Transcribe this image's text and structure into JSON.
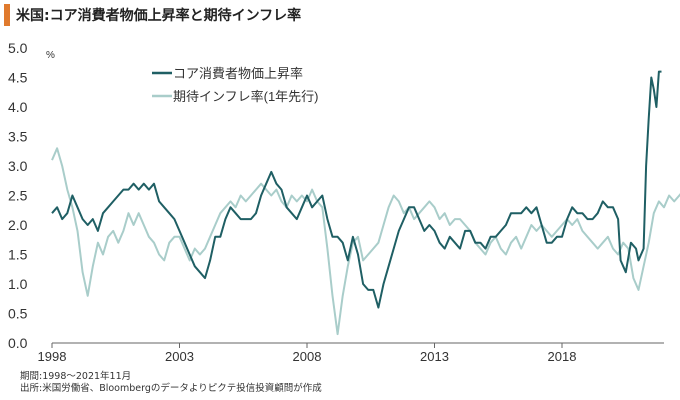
{
  "title": "米国:コア消費者物価上昇率と期待インフレ率",
  "colors": {
    "accent": "#e07a2e",
    "core_cpi": "#1f5f64",
    "expected_inflation": "#a9cdca",
    "axis": "#666666"
  },
  "notes": {
    "period": "期間:1998～2021年11月",
    "source": "出所:米国労働省、Bloombergのデータよりピクテ投信投資顧問が作成"
  },
  "chart_data": {
    "type": "line",
    "ylabel": "%",
    "ylim": [
      0.0,
      5.0
    ],
    "yticks": [
      "0.0",
      "0.5",
      "1.0",
      "1.5",
      "2.0",
      "2.5",
      "3.0",
      "3.5",
      "4.0",
      "4.5",
      "5.0"
    ],
    "xlim": [
      1998.0,
      2022.0
    ],
    "xticks": [
      {
        "x": 1998,
        "label": "1998"
      },
      {
        "x": 2003,
        "label": "2003"
      },
      {
        "x": 2008,
        "label": "2008"
      },
      {
        "x": 2013,
        "label": "2013"
      },
      {
        "x": 2018,
        "label": "2018"
      }
    ],
    "legend": "top-left",
    "series": [
      {
        "name": "コア消費者物価上昇率",
        "color": "#1f5f64",
        "points": [
          [
            1998.0,
            2.2
          ],
          [
            1998.2,
            2.3
          ],
          [
            1998.4,
            2.1
          ],
          [
            1998.6,
            2.2
          ],
          [
            1998.8,
            2.5
          ],
          [
            1999.0,
            2.3
          ],
          [
            1999.2,
            2.1
          ],
          [
            1999.4,
            2.0
          ],
          [
            1999.6,
            2.1
          ],
          [
            1999.8,
            1.9
          ],
          [
            2000.0,
            2.2
          ],
          [
            2000.2,
            2.3
          ],
          [
            2000.4,
            2.4
          ],
          [
            2000.6,
            2.5
          ],
          [
            2000.8,
            2.6
          ],
          [
            2001.0,
            2.6
          ],
          [
            2001.2,
            2.7
          ],
          [
            2001.4,
            2.6
          ],
          [
            2001.6,
            2.7
          ],
          [
            2001.8,
            2.6
          ],
          [
            2002.0,
            2.7
          ],
          [
            2002.2,
            2.4
          ],
          [
            2002.4,
            2.3
          ],
          [
            2002.6,
            2.2
          ],
          [
            2002.8,
            2.1
          ],
          [
            2003.0,
            1.9
          ],
          [
            2003.2,
            1.7
          ],
          [
            2003.4,
            1.5
          ],
          [
            2003.6,
            1.3
          ],
          [
            2003.8,
            1.2
          ],
          [
            2004.0,
            1.1
          ],
          [
            2004.2,
            1.4
          ],
          [
            2004.4,
            1.8
          ],
          [
            2004.6,
            1.8
          ],
          [
            2004.8,
            2.1
          ],
          [
            2005.0,
            2.3
          ],
          [
            2005.2,
            2.2
          ],
          [
            2005.4,
            2.1
          ],
          [
            2005.6,
            2.1
          ],
          [
            2005.8,
            2.1
          ],
          [
            2006.0,
            2.2
          ],
          [
            2006.2,
            2.5
          ],
          [
            2006.4,
            2.7
          ],
          [
            2006.6,
            2.9
          ],
          [
            2006.8,
            2.7
          ],
          [
            2007.0,
            2.6
          ],
          [
            2007.2,
            2.3
          ],
          [
            2007.4,
            2.2
          ],
          [
            2007.6,
            2.1
          ],
          [
            2007.8,
            2.3
          ],
          [
            2008.0,
            2.5
          ],
          [
            2008.2,
            2.3
          ],
          [
            2008.4,
            2.4
          ],
          [
            2008.6,
            2.5
          ],
          [
            2008.8,
            2.1
          ],
          [
            2009.0,
            1.8
          ],
          [
            2009.2,
            1.8
          ],
          [
            2009.4,
            1.7
          ],
          [
            2009.6,
            1.4
          ],
          [
            2009.8,
            1.8
          ],
          [
            2010.0,
            1.5
          ],
          [
            2010.2,
            1.0
          ],
          [
            2010.4,
            0.9
          ],
          [
            2010.6,
            0.9
          ],
          [
            2010.8,
            0.6
          ],
          [
            2011.0,
            1.0
          ],
          [
            2011.2,
            1.3
          ],
          [
            2011.4,
            1.6
          ],
          [
            2011.6,
            1.9
          ],
          [
            2011.8,
            2.1
          ],
          [
            2012.0,
            2.3
          ],
          [
            2012.2,
            2.3
          ],
          [
            2012.4,
            2.1
          ],
          [
            2012.6,
            1.9
          ],
          [
            2012.8,
            2.0
          ],
          [
            2013.0,
            1.9
          ],
          [
            2013.2,
            1.7
          ],
          [
            2013.4,
            1.6
          ],
          [
            2013.6,
            1.8
          ],
          [
            2013.8,
            1.7
          ],
          [
            2014.0,
            1.6
          ],
          [
            2014.2,
            1.9
          ],
          [
            2014.4,
            1.9
          ],
          [
            2014.6,
            1.7
          ],
          [
            2014.8,
            1.7
          ],
          [
            2015.0,
            1.6
          ],
          [
            2015.2,
            1.8
          ],
          [
            2015.4,
            1.8
          ],
          [
            2015.6,
            1.9
          ],
          [
            2015.8,
            2.0
          ],
          [
            2016.0,
            2.2
          ],
          [
            2016.2,
            2.2
          ],
          [
            2016.4,
            2.2
          ],
          [
            2016.6,
            2.3
          ],
          [
            2016.8,
            2.2
          ],
          [
            2017.0,
            2.3
          ],
          [
            2017.2,
            2.0
          ],
          [
            2017.4,
            1.7
          ],
          [
            2017.6,
            1.7
          ],
          [
            2017.8,
            1.8
          ],
          [
            2018.0,
            1.8
          ],
          [
            2018.2,
            2.1
          ],
          [
            2018.4,
            2.3
          ],
          [
            2018.6,
            2.2
          ],
          [
            2018.8,
            2.2
          ],
          [
            2019.0,
            2.1
          ],
          [
            2019.2,
            2.1
          ],
          [
            2019.4,
            2.2
          ],
          [
            2019.6,
            2.4
          ],
          [
            2019.8,
            2.3
          ],
          [
            2020.0,
            2.3
          ],
          [
            2020.2,
            2.1
          ],
          [
            2020.3,
            1.4
          ],
          [
            2020.5,
            1.2
          ],
          [
            2020.7,
            1.7
          ],
          [
            2020.9,
            1.6
          ],
          [
            2021.0,
            1.4
          ],
          [
            2021.2,
            1.6
          ],
          [
            2021.3,
            3.0
          ],
          [
            2021.4,
            3.8
          ],
          [
            2021.5,
            4.5
          ],
          [
            2021.6,
            4.3
          ],
          [
            2021.7,
            4.0
          ],
          [
            2021.8,
            4.6
          ],
          [
            2021.9,
            4.6
          ]
        ]
      },
      {
        "name": "期待インフレ率(1年先行)",
        "color": "#a9cdca",
        "points": [
          [
            1998.0,
            3.1
          ],
          [
            1998.2,
            3.3
          ],
          [
            1998.4,
            3.0
          ],
          [
            1998.6,
            2.6
          ],
          [
            1998.8,
            2.3
          ],
          [
            1999.0,
            1.9
          ],
          [
            1999.2,
            1.2
          ],
          [
            1999.4,
            0.8
          ],
          [
            1999.6,
            1.3
          ],
          [
            1999.8,
            1.7
          ],
          [
            2000.0,
            1.5
          ],
          [
            2000.2,
            1.8
          ],
          [
            2000.4,
            1.9
          ],
          [
            2000.6,
            1.7
          ],
          [
            2000.8,
            1.9
          ],
          [
            2001.0,
            2.2
          ],
          [
            2001.2,
            2.0
          ],
          [
            2001.4,
            2.2
          ],
          [
            2001.6,
            2.0
          ],
          [
            2001.8,
            1.8
          ],
          [
            2002.0,
            1.7
          ],
          [
            2002.2,
            1.5
          ],
          [
            2002.4,
            1.4
          ],
          [
            2002.6,
            1.7
          ],
          [
            2002.8,
            1.8
          ],
          [
            2003.0,
            1.8
          ],
          [
            2003.2,
            1.6
          ],
          [
            2003.4,
            1.4
          ],
          [
            2003.6,
            1.6
          ],
          [
            2003.8,
            1.5
          ],
          [
            2004.0,
            1.6
          ],
          [
            2004.2,
            1.8
          ],
          [
            2004.4,
            2.0
          ],
          [
            2004.6,
            2.2
          ],
          [
            2004.8,
            2.3
          ],
          [
            2005.0,
            2.4
          ],
          [
            2005.2,
            2.3
          ],
          [
            2005.4,
            2.5
          ],
          [
            2005.6,
            2.4
          ],
          [
            2005.8,
            2.5
          ],
          [
            2006.0,
            2.6
          ],
          [
            2006.2,
            2.7
          ],
          [
            2006.4,
            2.6
          ],
          [
            2006.6,
            2.5
          ],
          [
            2006.8,
            2.6
          ],
          [
            2007.0,
            2.4
          ],
          [
            2007.2,
            2.3
          ],
          [
            2007.4,
            2.5
          ],
          [
            2007.6,
            2.4
          ],
          [
            2007.8,
            2.5
          ],
          [
            2008.0,
            2.4
          ],
          [
            2008.2,
            2.6
          ],
          [
            2008.4,
            2.4
          ],
          [
            2008.6,
            2.3
          ],
          [
            2008.8,
            1.6
          ],
          [
            2009.0,
            0.8
          ],
          [
            2009.2,
            0.15
          ],
          [
            2009.4,
            0.8
          ],
          [
            2009.6,
            1.3
          ],
          [
            2009.8,
            1.7
          ],
          [
            2010.0,
            1.8
          ],
          [
            2010.2,
            1.4
          ],
          [
            2010.4,
            1.5
          ],
          [
            2010.6,
            1.6
          ],
          [
            2010.8,
            1.7
          ],
          [
            2011.0,
            2.0
          ],
          [
            2011.2,
            2.3
          ],
          [
            2011.4,
            2.5
          ],
          [
            2011.6,
            2.4
          ],
          [
            2011.8,
            2.2
          ],
          [
            2012.0,
            2.3
          ],
          [
            2012.2,
            2.1
          ],
          [
            2012.4,
            2.2
          ],
          [
            2012.6,
            2.3
          ],
          [
            2012.8,
            2.4
          ],
          [
            2013.0,
            2.3
          ],
          [
            2013.2,
            2.1
          ],
          [
            2013.4,
            2.2
          ],
          [
            2013.6,
            2.0
          ],
          [
            2013.8,
            2.1
          ],
          [
            2014.0,
            2.1
          ],
          [
            2014.2,
            2.0
          ],
          [
            2014.4,
            1.9
          ],
          [
            2014.6,
            1.7
          ],
          [
            2014.8,
            1.6
          ],
          [
            2015.0,
            1.5
          ],
          [
            2015.2,
            1.7
          ],
          [
            2015.4,
            1.8
          ],
          [
            2015.6,
            1.6
          ],
          [
            2015.8,
            1.5
          ],
          [
            2016.0,
            1.7
          ],
          [
            2016.2,
            1.8
          ],
          [
            2016.4,
            1.6
          ],
          [
            2016.6,
            1.8
          ],
          [
            2016.8,
            2.0
          ],
          [
            2017.0,
            1.9
          ],
          [
            2017.2,
            2.0
          ],
          [
            2017.4,
            1.9
          ],
          [
            2017.6,
            1.8
          ],
          [
            2017.8,
            1.9
          ],
          [
            2018.0,
            2.0
          ],
          [
            2018.2,
            2.1
          ],
          [
            2018.4,
            2.0
          ],
          [
            2018.6,
            2.1
          ],
          [
            2018.8,
            1.9
          ],
          [
            2019.0,
            1.8
          ],
          [
            2019.2,
            1.7
          ],
          [
            2019.4,
            1.6
          ],
          [
            2019.6,
            1.7
          ],
          [
            2019.8,
            1.8
          ],
          [
            2020.0,
            1.6
          ],
          [
            2020.2,
            1.5
          ],
          [
            2020.4,
            1.7
          ],
          [
            2020.6,
            1.6
          ],
          [
            2020.8,
            1.1
          ],
          [
            2021.0,
            0.9
          ],
          [
            2021.2,
            1.3
          ],
          [
            2021.4,
            1.7
          ],
          [
            2021.6,
            2.2
          ],
          [
            2021.8,
            2.4
          ],
          [
            2022.0,
            2.3
          ],
          [
            2022.2,
            2.5
          ],
          [
            2022.4,
            2.4
          ],
          [
            2022.6,
            2.5
          ],
          [
            2022.8,
            2.6
          ]
        ]
      }
    ]
  }
}
